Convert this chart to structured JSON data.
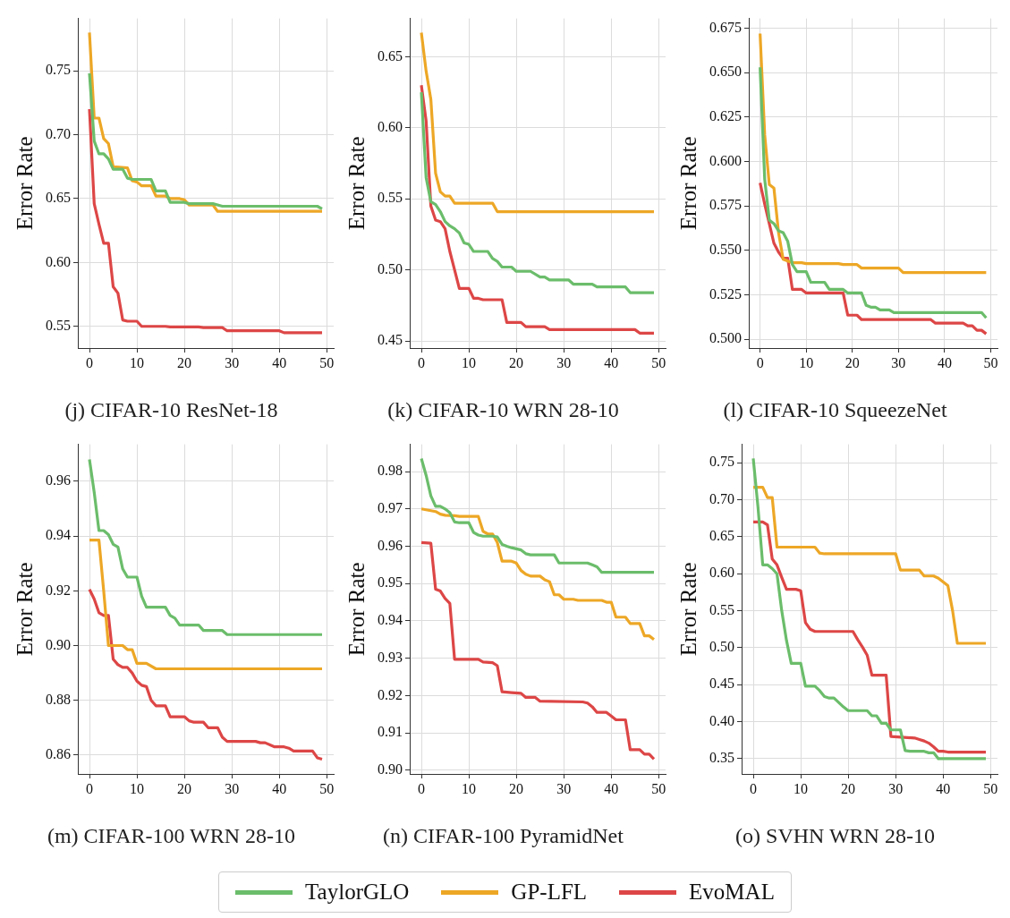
{
  "chart_data": [
    {
      "type": "line",
      "title": "(j) CIFAR-10 ResNet-18",
      "ylabel": "Error Rate",
      "xlim": [
        -2.45,
        51.45
      ],
      "xticks": [
        0,
        10,
        20,
        30,
        40,
        50
      ],
      "ylim": [
        0.533,
        0.791
      ],
      "yticks": [
        0.55,
        {
          "value": 0.6,
          "label": "0.60"
        },
        0.65,
        {
          "value": 0.7,
          "label": "0.70"
        },
        0.75
      ],
      "grid": true,
      "marker": "none",
      "legend": "bottom",
      "series": [
        {
          "name": "TaylorGLO",
          "color": "#6bbd6b",
          "x": [
            0,
            1,
            2,
            3,
            4,
            5,
            7,
            8,
            9,
            13,
            14,
            16,
            17,
            20,
            21,
            26,
            28,
            48,
            49
          ],
          "values": [
            0.748,
            0.695,
            0.685,
            0.685,
            0.681,
            0.673,
            0.673,
            0.666,
            0.665,
            0.665,
            0.656,
            0.656,
            0.647,
            0.647,
            0.646,
            0.646,
            0.644,
            0.644,
            0.642
          ]
        },
        {
          "name": "GP-LFL",
          "color": "#eda726",
          "x": [
            0,
            1,
            2,
            3,
            4,
            5,
            8,
            9,
            10,
            11,
            13,
            14,
            16,
            17,
            19,
            20,
            21,
            26,
            27,
            49
          ],
          "values": [
            0.78,
            0.713,
            0.713,
            0.697,
            0.693,
            0.675,
            0.674,
            0.664,
            0.663,
            0.66,
            0.66,
            0.652,
            0.652,
            0.65,
            0.65,
            0.649,
            0.645,
            0.645,
            0.64,
            0.64
          ]
        },
        {
          "name": "EvoMAL",
          "color": "#dd4646",
          "x": [
            0,
            1,
            2,
            3,
            4,
            5,
            6,
            7,
            8,
            10,
            11,
            16,
            17,
            23,
            24,
            28,
            29,
            40,
            41,
            49
          ],
          "values": [
            0.72,
            0.646,
            0.63,
            0.615,
            0.615,
            0.581,
            0.576,
            0.555,
            0.554,
            0.554,
            0.55,
            0.55,
            0.5495,
            0.5495,
            0.549,
            0.549,
            0.5465,
            0.5465,
            0.545,
            0.545
          ]
        }
      ]
    },
    {
      "type": "line",
      "title": "(k) CIFAR-10 WRN 28-10",
      "ylabel": "Error Rate",
      "xlim": [
        -2.45,
        51.45
      ],
      "xticks": [
        0,
        10,
        20,
        30,
        40,
        50
      ],
      "ylim": [
        0.445,
        0.677
      ],
      "yticks": [
        0.45,
        {
          "value": 0.5,
          "label": "0.50"
        },
        0.55,
        {
          "value": 0.6,
          "label": "0.60"
        },
        0.65
      ],
      "grid": true,
      "marker": "none",
      "series": [
        {
          "color": "#6bbd6b",
          "x": [
            0,
            1,
            2,
            3,
            4,
            5,
            6,
            7,
            8,
            9,
            10,
            11,
            14,
            15,
            16,
            17,
            19,
            20,
            23,
            25,
            26,
            27,
            31,
            32,
            36,
            37,
            43,
            44,
            49
          ],
          "values": [
            0.625,
            0.565,
            0.548,
            0.546,
            0.541,
            0.534,
            0.531,
            0.529,
            0.526,
            0.519,
            0.518,
            0.513,
            0.513,
            0.508,
            0.506,
            0.502,
            0.502,
            0.499,
            0.499,
            0.495,
            0.495,
            0.493,
            0.493,
            0.49,
            0.49,
            0.488,
            0.488,
            0.484,
            0.484
          ]
        },
        {
          "color": "#eda726",
          "x": [
            0,
            1,
            2,
            3,
            4,
            5,
            6,
            7,
            15,
            16,
            49
          ],
          "values": [
            0.667,
            0.64,
            0.62,
            0.568,
            0.555,
            0.552,
            0.552,
            0.547,
            0.547,
            0.541,
            0.541
          ]
        },
        {
          "color": "#dd4646",
          "x": [
            0,
            1,
            2,
            3,
            4,
            5,
            6,
            7,
            8,
            10,
            11,
            12,
            13,
            17,
            18,
            21,
            22,
            26,
            27,
            45,
            46,
            49
          ],
          "values": [
            0.63,
            0.605,
            0.545,
            0.535,
            0.534,
            0.529,
            0.513,
            0.5,
            0.487,
            0.487,
            0.48,
            0.48,
            0.479,
            0.479,
            0.463,
            0.463,
            0.46,
            0.46,
            0.458,
            0.458,
            0.4555,
            0.4555
          ]
        }
      ]
    },
    {
      "type": "line",
      "title": "(l) CIFAR-10 SqueezeNet",
      "ylabel": "Error Rate",
      "xlim": [
        -2.45,
        51.45
      ],
      "xticks": [
        0,
        10,
        20,
        30,
        40,
        50
      ],
      "ylim": [
        0.495,
        0.6805
      ],
      "yticks": [
        {
          "value": 0.5,
          "label": "0.500"
        },
        {
          "value": 0.525,
          "label": "0.525"
        },
        {
          "value": 0.55,
          "label": "0.550"
        },
        {
          "value": 0.575,
          "label": "0.575"
        },
        {
          "value": 0.6,
          "label": "0.600"
        },
        {
          "value": 0.625,
          "label": "0.625"
        },
        {
          "value": 0.65,
          "label": "0.650"
        },
        {
          "value": 0.675,
          "label": "0.675"
        }
      ],
      "grid": true,
      "marker": "none",
      "series": [
        {
          "color": "#6bbd6b",
          "x": [
            0,
            1,
            2,
            3,
            4,
            5,
            6,
            7,
            8,
            10,
            11,
            14,
            15,
            18,
            19,
            22,
            23,
            24,
            25,
            26,
            28,
            29,
            48,
            49
          ],
          "values": [
            0.653,
            0.59,
            0.567,
            0.565,
            0.561,
            0.56,
            0.555,
            0.542,
            0.538,
            0.538,
            0.532,
            0.532,
            0.528,
            0.528,
            0.526,
            0.526,
            0.519,
            0.518,
            0.518,
            0.5165,
            0.5165,
            0.515,
            0.515,
            0.512
          ]
        },
        {
          "color": "#eda726",
          "x": [
            0,
            1,
            2,
            3,
            4,
            5,
            6,
            7,
            9,
            10,
            17,
            18,
            21,
            22,
            30,
            31,
            49
          ],
          "values": [
            0.672,
            0.615,
            0.587,
            0.585,
            0.56,
            0.545,
            0.544,
            0.543,
            0.543,
            0.5425,
            0.5425,
            0.542,
            0.542,
            0.54,
            0.54,
            0.5375,
            0.5375
          ]
        },
        {
          "color": "#dd4646",
          "x": [
            0,
            1,
            2,
            3,
            4,
            5,
            6,
            7,
            9,
            10,
            18,
            19,
            21,
            22,
            37,
            38,
            44,
            45,
            46,
            47,
            48,
            49
          ],
          "values": [
            0.588,
            0.576,
            0.565,
            0.554,
            0.549,
            0.5455,
            0.5455,
            0.528,
            0.528,
            0.526,
            0.526,
            0.5135,
            0.5135,
            0.511,
            0.511,
            0.509,
            0.509,
            0.5075,
            0.5075,
            0.505,
            0.505,
            0.503
          ]
        }
      ]
    },
    {
      "type": "line",
      "title": "(m) CIFAR-100 WRN 28-10",
      "ylabel": "Error Rate",
      "xlim": [
        -2.45,
        51.45
      ],
      "xticks": [
        0,
        10,
        20,
        30,
        40,
        50
      ],
      "ylim": [
        0.8531,
        0.9735
      ],
      "yticks": [
        0.86,
        0.88,
        {
          "value": 0.9,
          "label": "0.90"
        },
        0.92,
        0.94,
        0.96
      ],
      "grid": true,
      "marker": "none",
      "series": [
        {
          "color": "#6bbd6b",
          "x": [
            0,
            1,
            2,
            3,
            4,
            5,
            6,
            7,
            8,
            10,
            11,
            12,
            16,
            17,
            18,
            19,
            23,
            24,
            28,
            29,
            49
          ],
          "values": [
            0.968,
            0.956,
            0.942,
            0.942,
            0.9405,
            0.937,
            0.936,
            0.928,
            0.925,
            0.925,
            0.918,
            0.914,
            0.914,
            0.911,
            0.91,
            0.9075,
            0.9075,
            0.9055,
            0.9055,
            0.904,
            0.904
          ]
        },
        {
          "color": "#eda726",
          "x": [
            0,
            2,
            3,
            4,
            7,
            8,
            9,
            10,
            12,
            14,
            49
          ],
          "values": [
            0.9385,
            0.9385,
            0.92,
            0.9,
            0.9,
            0.8985,
            0.8985,
            0.8935,
            0.8935,
            0.8915,
            0.8915
          ]
        },
        {
          "color": "#dd4646",
          "x": [
            0,
            1,
            2,
            3,
            4,
            5,
            6,
            7,
            8,
            9,
            10,
            11,
            12,
            13,
            14,
            16,
            17,
            20,
            21,
            22,
            24,
            25,
            27,
            28,
            29,
            35,
            36,
            37,
            39,
            41,
            42,
            43,
            47,
            48,
            49
          ],
          "values": [
            0.9205,
            0.917,
            0.912,
            0.911,
            0.911,
            0.895,
            0.893,
            0.892,
            0.892,
            0.89,
            0.887,
            0.8855,
            0.885,
            0.88,
            0.878,
            0.878,
            0.874,
            0.874,
            0.8725,
            0.872,
            0.872,
            0.87,
            0.87,
            0.8665,
            0.865,
            0.865,
            0.8645,
            0.8645,
            0.863,
            0.863,
            0.8625,
            0.8615,
            0.8615,
            0.859,
            0.8585
          ]
        }
      ]
    },
    {
      "type": "line",
      "title": "(n) CIFAR-100 PyramidNet",
      "ylabel": "Error Rate",
      "xlim": [
        -2.45,
        51.45
      ],
      "xticks": [
        0,
        10,
        20,
        30,
        40,
        50
      ],
      "ylim": [
        0.899,
        0.9873
      ],
      "yticks": [
        {
          "value": 0.9,
          "label": "0.90"
        },
        0.91,
        0.92,
        0.93,
        0.94,
        0.95,
        0.96,
        0.97,
        0.98
      ],
      "grid": true,
      "marker": "none",
      "series": [
        {
          "color": "#6bbd6b",
          "x": [
            0,
            1,
            2,
            3,
            4,
            5,
            6,
            7,
            8,
            10,
            11,
            12,
            13,
            15,
            16,
            17,
            18,
            19,
            21,
            22,
            23,
            28,
            29,
            35,
            36,
            37,
            38,
            49
          ],
          "values": [
            0.9835,
            0.979,
            0.9735,
            0.9707,
            0.9707,
            0.97,
            0.969,
            0.9665,
            0.9663,
            0.9663,
            0.9637,
            0.963,
            0.9627,
            0.9627,
            0.9625,
            0.9605,
            0.96,
            0.9596,
            0.959,
            0.958,
            0.9577,
            0.9577,
            0.9555,
            0.9555,
            0.955,
            0.9545,
            0.953,
            0.953
          ]
        },
        {
          "color": "#eda726",
          "x": [
            0,
            3,
            4,
            5,
            7,
            8,
            12,
            13,
            14,
            15,
            16,
            17,
            19,
            20,
            21,
            22,
            23,
            25,
            26,
            27,
            28,
            29,
            30,
            32,
            33,
            38,
            39,
            40,
            41,
            43,
            44,
            46,
            47,
            48,
            49
          ],
          "values": [
            0.97,
            0.9693,
            0.9686,
            0.9683,
            0.9682,
            0.968,
            0.968,
            0.964,
            0.9633,
            0.9633,
            0.961,
            0.956,
            0.956,
            0.9555,
            0.9535,
            0.9525,
            0.952,
            0.952,
            0.951,
            0.9505,
            0.947,
            0.947,
            0.9458,
            0.9458,
            0.9455,
            0.9455,
            0.945,
            0.945,
            0.941,
            0.941,
            0.9393,
            0.9393,
            0.936,
            0.936,
            0.935
          ]
        },
        {
          "color": "#dd4646",
          "x": [
            0,
            2,
            3,
            4,
            5,
            6,
            7,
            12,
            13,
            15,
            16,
            17,
            19,
            21,
            22,
            24,
            25,
            34,
            35,
            36,
            37,
            39,
            40,
            41,
            43,
            44,
            46,
            47,
            48,
            49
          ],
          "values": [
            0.961,
            0.9608,
            0.9485,
            0.948,
            0.946,
            0.9447,
            0.9297,
            0.9297,
            0.929,
            0.9288,
            0.928,
            0.921,
            0.9208,
            0.9206,
            0.9195,
            0.9195,
            0.9185,
            0.9183,
            0.918,
            0.917,
            0.9155,
            0.9155,
            0.9145,
            0.9135,
            0.9135,
            0.9055,
            0.9055,
            0.9043,
            0.9043,
            0.903
          ]
        }
      ]
    },
    {
      "type": "line",
      "title": "(o) SVHN WRN 28-10",
      "ylabel": "Error Rate",
      "xlim": [
        -2.45,
        51.45
      ],
      "xticks": [
        0,
        10,
        20,
        30,
        40,
        50
      ],
      "ylim": [
        0.3294,
        0.775
      ],
      "yticks": [
        0.35,
        {
          "value": 0.4,
          "label": "0.40"
        },
        0.45,
        {
          "value": 0.5,
          "label": "0.50"
        },
        0.55,
        {
          "value": 0.6,
          "label": "0.60"
        },
        0.65,
        {
          "value": 0.7,
          "label": "0.70"
        },
        0.75
      ],
      "grid": true,
      "marker": "none",
      "series": [
        {
          "color": "#6bbd6b",
          "x": [
            0,
            1,
            2,
            3,
            4,
            5,
            6,
            7,
            8,
            10,
            11,
            13,
            14,
            15,
            16,
            17,
            18,
            19,
            20,
            24,
            25,
            26,
            27,
            28,
            29,
            31,
            32,
            33,
            36,
            37,
            38,
            39,
            49
          ],
          "values": [
            0.756,
            0.69,
            0.612,
            0.612,
            0.607,
            0.6,
            0.55,
            0.51,
            0.479,
            0.479,
            0.448,
            0.448,
            0.442,
            0.434,
            0.432,
            0.432,
            0.426,
            0.42,
            0.415,
            0.415,
            0.408,
            0.408,
            0.398,
            0.398,
            0.389,
            0.389,
            0.361,
            0.36,
            0.36,
            0.358,
            0.358,
            0.35,
            0.35
          ]
        },
        {
          "color": "#eda726",
          "x": [
            0,
            2,
            3,
            4,
            5,
            13,
            14,
            15,
            30,
            31,
            35,
            36,
            38,
            39,
            41,
            42,
            43,
            49
          ],
          "values": [
            0.717,
            0.717,
            0.703,
            0.703,
            0.636,
            0.636,
            0.628,
            0.627,
            0.627,
            0.605,
            0.605,
            0.597,
            0.597,
            0.594,
            0.584,
            0.55,
            0.506,
            0.506
          ]
        },
        {
          "color": "#dd4646",
          "x": [
            0,
            2,
            3,
            4,
            5,
            6,
            7,
            9,
            10,
            11,
            12,
            13,
            21,
            22,
            23,
            24,
            25,
            28,
            29,
            34,
            35,
            36,
            37,
            38,
            39,
            40,
            41,
            49
          ],
          "values": [
            0.67,
            0.67,
            0.666,
            0.62,
            0.612,
            0.595,
            0.579,
            0.579,
            0.577,
            0.534,
            0.525,
            0.522,
            0.522,
            0.511,
            0.501,
            0.49,
            0.463,
            0.463,
            0.38,
            0.378,
            0.376,
            0.374,
            0.371,
            0.366,
            0.36,
            0.36,
            0.359,
            0.359
          ]
        }
      ]
    }
  ]
}
